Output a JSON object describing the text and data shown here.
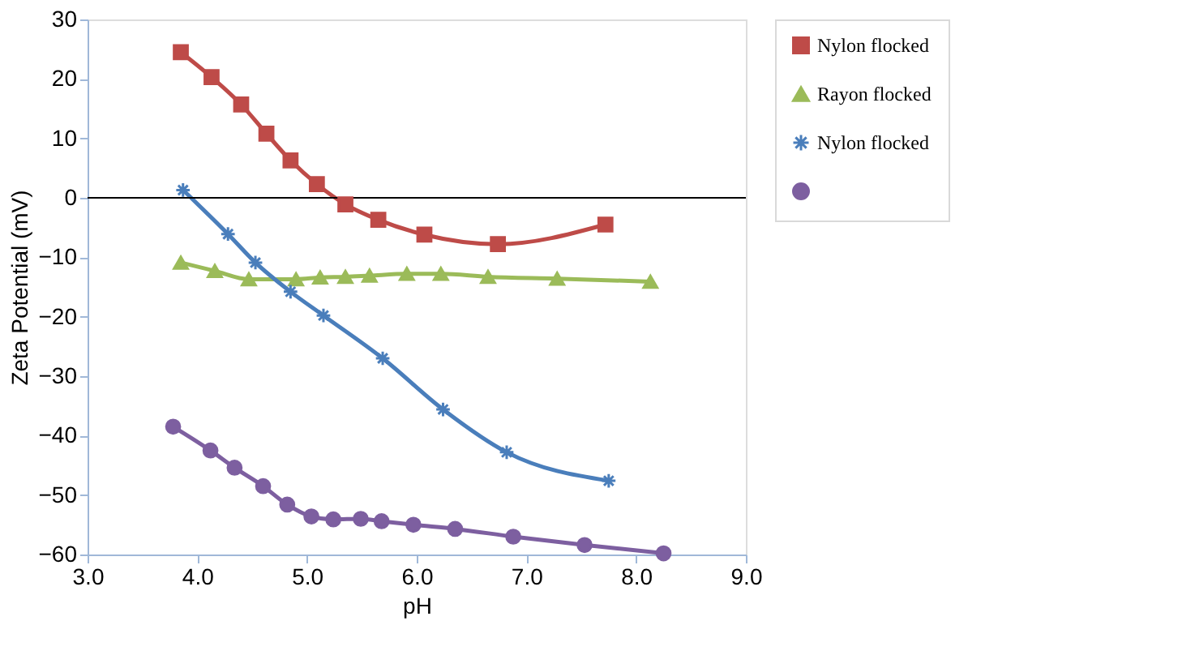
{
  "chart_data": {
    "type": "line",
    "xlabel": "pH",
    "ylabel": "Zeta Potential (mV)",
    "xlim": [
      3,
      9
    ],
    "xticks": [
      {
        "value": 3,
        "label": "3.0"
      },
      {
        "value": 4,
        "label": "4.0"
      },
      {
        "value": 5,
        "label": "5.0"
      },
      {
        "value": 6,
        "label": "6.0"
      },
      {
        "value": 7,
        "label": "7.0"
      },
      {
        "value": 8,
        "label": "8.0"
      },
      {
        "value": 9,
        "label": "9.0"
      }
    ],
    "ylim": [
      -60,
      30
    ],
    "yticks": [
      -60,
      -50,
      -40,
      -30,
      -20,
      -10,
      0,
      10,
      20,
      30
    ],
    "grid": false,
    "legend": "top right",
    "ref_lines": [
      {
        "axis": "y",
        "value": 0,
        "color": "#000000"
      }
    ],
    "series": [
      {
        "name": "Nylon flocked",
        "color": "#be4b48",
        "marker": "square",
        "x": [
          3.85,
          4.13,
          4.4,
          4.63,
          4.85,
          5.09,
          5.35,
          5.65,
          6.07,
          6.74,
          7.72
        ],
        "values": [
          24.5,
          20.3,
          15.7,
          10.8,
          6.3,
          2.3,
          -1.1,
          -3.7,
          -6.2,
          -7.8,
          -4.5
        ]
      },
      {
        "name": "Rayon flocked",
        "color": "#9bbb59",
        "marker": "triangle",
        "x": [
          3.85,
          4.16,
          4.47,
          4.9,
          5.12,
          5.35,
          5.57,
          5.91,
          6.22,
          6.65,
          7.28,
          8.13
        ],
        "values": [
          -10.9,
          -12.3,
          -13.7,
          -13.7,
          -13.4,
          -13.3,
          -13.1,
          -12.8,
          -12.8,
          -13.3,
          -13.6,
          -14.1
        ]
      },
      {
        "name": "Nylon flocked",
        "color": "#4a7ebb",
        "marker": "cross",
        "x": [
          3.87,
          4.28,
          4.53,
          4.85,
          5.15,
          5.69,
          6.24,
          6.82,
          7.75
        ],
        "values": [
          1.3,
          -6.1,
          -10.9,
          -15.8,
          -19.8,
          -27.0,
          -35.6,
          -42.8,
          -47.6
        ]
      },
      {
        "color": "#7d5fa0",
        "marker": "circle",
        "x": [
          3.78,
          4.12,
          4.34,
          4.6,
          4.82,
          5.04,
          5.24,
          5.49,
          5.68,
          5.97,
          6.35,
          6.88,
          7.53,
          8.25
        ],
        "values": [
          -38.5,
          -42.5,
          -45.4,
          -48.5,
          -51.6,
          -53.6,
          -54.1,
          -54.0,
          -54.4,
          -55.0,
          -55.7,
          -57.0,
          -58.4,
          -59.8
        ]
      }
    ]
  }
}
